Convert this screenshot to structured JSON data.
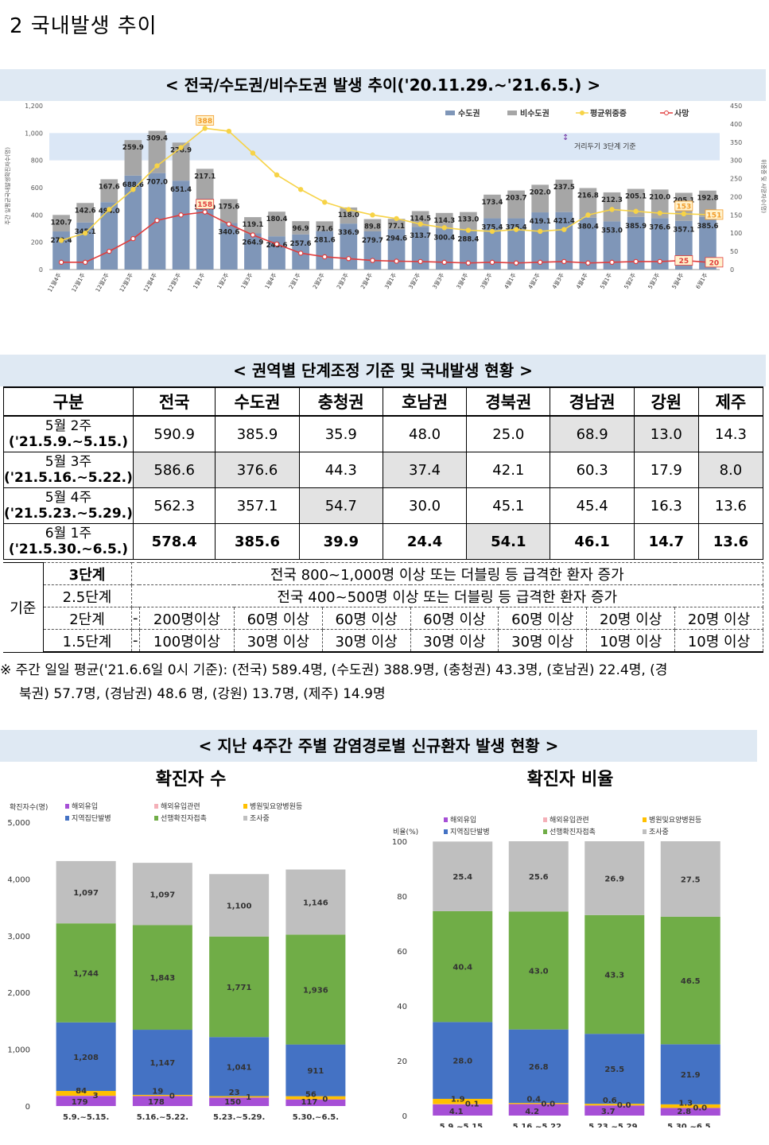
{
  "section_title": "2  국내발생 추이",
  "chart1": {
    "title": "< 전국/수도권/비수도권 발생 추이('20.11.29.~'21.6.5.) >",
    "legend": {
      "capital": "수도권",
      "noncapital": "비수도권",
      "avg_severe": "평균위중증",
      "death": "사망"
    },
    "band_label": "거리두기 3단계 기준",
    "y_left_title": "주간 일평균국내발생확진자수(명)",
    "y_right_title": "위중증 및 사망자수(명)",
    "y_left_ticks": [
      "0",
      "200",
      "400",
      "600",
      "800",
      "1,000",
      "1,200"
    ],
    "y_right_ticks": [
      "0",
      "50",
      "100",
      "150",
      "200",
      "250",
      "300",
      "350",
      "400",
      "450"
    ],
    "colors": {
      "capital": "#7f96b8",
      "noncapital": "#a6a6a6",
      "avg_severe": "#f7d347",
      "death": "#e03c3c",
      "band": "#dbe7f6"
    }
  },
  "chart_data": [
    {
      "type": "bar",
      "title": "< 전국/수도권/비수도권 발생 추이('20.11.29.~'21.6.5.) >",
      "categories": [
        "11월4주",
        "12월1주",
        "12월2주",
        "12월3주",
        "12월4주",
        "12월5주",
        "1월1주",
        "1월2주",
        "1월3주",
        "1월4주",
        "2월1주",
        "2월2주",
        "2월3주",
        "2월4주",
        "3월1주",
        "3월2주",
        "3월3주",
        "3월4주",
        "3월5주",
        "4월1주",
        "4월2주",
        "4월3주",
        "4월4주",
        "5월1주",
        "5월2주",
        "5월3주",
        "5월4주",
        "6월1주"
      ],
      "series": [
        {
          "name": "수도권",
          "values": [
            279.4,
            345.1,
            494.0,
            688.6,
            707.0,
            651.4,
            520.9,
            340.6,
            264.9,
            243.6,
            257.6,
            281.6,
            336.9,
            279.7,
            294.6,
            313.7,
            300.4,
            288.4,
            375.4,
            375.4,
            419.1,
            421.4,
            380.4,
            353.0,
            385.9,
            376.6,
            357.1,
            385.6
          ]
        },
        {
          "name": "비수도권",
          "values": [
            120.7,
            142.6,
            167.6,
            259.9,
            309.4,
            278.9,
            217.1,
            175.6,
            119.1,
            180.4,
            96.9,
            71.6,
            118.0,
            89.8,
            77.1,
            114.5,
            114.3,
            133.0,
            173.4,
            203.7,
            202.0,
            237.5,
            216.8,
            212.3,
            205.1,
            210.0,
            205.1,
            192.8
          ]
        },
        {
          "name": "평균위중증",
          "axis": "right",
          "values": [
            80,
            100,
            165,
            220,
            285,
            335,
            388,
            380,
            320,
            260,
            220,
            185,
            165,
            150,
            140,
            125,
            115,
            108,
            105,
            110,
            105,
            110,
            150,
            165,
            160,
            155,
            153,
            151
          ]
        },
        {
          "name": "사망",
          "axis": "right",
          "values": [
            20,
            20,
            50,
            85,
            135,
            150,
            158,
            125,
            95,
            70,
            45,
            35,
            30,
            25,
            23,
            22,
            20,
            18,
            20,
            18,
            20,
            22,
            18,
            20,
            22,
            22,
            25,
            20
          ]
        }
      ],
      "ylim": [
        0,
        1200
      ],
      "y2lim": [
        0,
        450
      ],
      "annotations": [
        "388",
        "158",
        "153",
        "151",
        "25",
        "20"
      ]
    },
    {
      "type": "bar",
      "title": "확진자 수",
      "ylabel": "확진자수(명)",
      "ylim": [
        0,
        5000
      ],
      "categories": [
        "5.9.~5.15.",
        "5.16.~5.22.",
        "5.23.~5.29.",
        "5.30.~6.5."
      ],
      "series": [
        {
          "name": "해외유입",
          "values": [
            179,
            178,
            150,
            117
          ]
        },
        {
          "name": "해외유입관련",
          "values": [
            3,
            0,
            1,
            0
          ]
        },
        {
          "name": "병원및요양병원등",
          "values": [
            84,
            19,
            23,
            56
          ]
        },
        {
          "name": "지역집단발병",
          "values": [
            1208,
            1147,
            1041,
            911
          ]
        },
        {
          "name": "선행확진자접촉",
          "values": [
            1744,
            1843,
            1771,
            1936
          ]
        },
        {
          "name": "조사중",
          "values": [
            1097,
            1097,
            1100,
            1146
          ]
        }
      ]
    },
    {
      "type": "bar",
      "title": "확진자 비율",
      "ylabel": "비율(%)",
      "ylim": [
        0,
        100
      ],
      "categories": [
        "5.9.~5.15.",
        "5.16.~5.22.",
        "5.23.~5.29.",
        "5.30.~6.5."
      ],
      "series": [
        {
          "name": "해외유입",
          "values": [
            4.1,
            4.2,
            3.7,
            2.8
          ]
        },
        {
          "name": "해외유입관련",
          "values": [
            0.1,
            0.0,
            0.0,
            0.0
          ]
        },
        {
          "name": "병원및요양병원등",
          "values": [
            1.9,
            0.4,
            0.6,
            1.3
          ]
        },
        {
          "name": "지역집단발병",
          "values": [
            28.0,
            26.8,
            25.5,
            21.9
          ]
        },
        {
          "name": "선행확진자접촉",
          "values": [
            40.4,
            43.0,
            43.3,
            46.5
          ]
        },
        {
          "name": "조사중",
          "values": [
            25.4,
            25.6,
            26.9,
            27.5
          ]
        }
      ]
    }
  ],
  "table": {
    "title": "< 권역별 단계조정 기준 및 국내발생 현황 >",
    "headers": [
      "구분",
      "전국",
      "수도권",
      "충청권",
      "호남권",
      "경북권",
      "경남권",
      "강원",
      "제주"
    ],
    "rows": [
      {
        "l1": "5월 2주",
        "l2": "('21.5.9.~5.15.)",
        "vals": [
          "590.9",
          "385.9",
          "35.9",
          "48.0",
          "25.0",
          "68.9",
          "13.0",
          "14.3"
        ]
      },
      {
        "l1": "5월 3주",
        "l2": "('21.5.16.~5.22.)",
        "vals": [
          "586.6",
          "376.6",
          "44.3",
          "37.4",
          "42.1",
          "60.3",
          "17.9",
          "8.0"
        ]
      },
      {
        "l1": "5월 4주",
        "l2": "('21.5.23.~5.29.)",
        "vals": [
          "562.3",
          "357.1",
          "54.7",
          "30.0",
          "45.1",
          "45.4",
          "16.3",
          "13.6"
        ]
      },
      {
        "l1": "6월 1주",
        "l2": "('21.5.30.~6.5.)",
        "vals": [
          "578.4",
          "385.6",
          "39.9",
          "24.4",
          "54.1",
          "46.1",
          "14.7",
          "13.6"
        ]
      }
    ],
    "criteria_label": "기준",
    "criteria": [
      {
        "stage": "3단계",
        "text": "전국 800~1,000명 이상 또는 더블링 등 급격한 환자 증가"
      },
      {
        "stage": "2.5단계",
        "text": "전국 400~500명 이상 또는 더블링 등 급격한 환자 증가"
      },
      {
        "stage": "2단계",
        "cells": [
          "-",
          "200명이상",
          "60명 이상",
          "60명 이상",
          "60명 이상",
          "60명 이상",
          "20명 이상",
          "20명 이상"
        ]
      },
      {
        "stage": "1.5단계",
        "cells": [
          "-",
          "100명이상",
          "30명 이상",
          "30명 이상",
          "30명 이상",
          "30명 이상",
          "10명 이상",
          "10명 이상"
        ]
      }
    ]
  },
  "note": {
    "line1": "※ 주간 일일 평균('21.6.6일 0시 기준): (전국) 589.4명, (수도권) 388.9명, (충청권) 43.3명, (호남권) 22.4명, (경",
    "line2": "북권) 57.7명, (경남권) 48.6 명, (강원) 13.7명, (제주) 14.9명"
  },
  "section3": {
    "title": "< 지난 4주간 주별 감염경로별 신규환자 발생 현황 >",
    "left_title": "확진자 수",
    "right_title": "확진자 비율",
    "left_yticks": [
      "0",
      "1,000",
      "2,000",
      "3,000",
      "4,000",
      "5,000"
    ],
    "right_yticks": [
      "0",
      "20",
      "40",
      "60",
      "80",
      "100"
    ],
    "left_value_labels": [
      [
        "179",
        "3",
        "84",
        "1,208",
        "1,744",
        "1,097"
      ],
      [
        "178",
        "0",
        "19",
        "1,147",
        "1,843",
        "1,097"
      ],
      [
        "150",
        "1",
        "23",
        "1,041",
        "1,771",
        "1,100"
      ],
      [
        "117",
        "0",
        "56",
        "911",
        "1,936",
        "1,146"
      ]
    ],
    "right_value_labels": [
      [
        "4.1",
        "0.1",
        "1.9",
        "28.0",
        "40.4",
        "25.4"
      ],
      [
        "4.2",
        "0.0",
        "0.4",
        "26.8",
        "43.0",
        "25.6"
      ],
      [
        "3.7",
        "0.0",
        "0.6",
        "25.5",
        "43.3",
        "26.9"
      ],
      [
        "2.8",
        "0.0",
        "1.3",
        "21.9",
        "46.5",
        "27.5"
      ]
    ],
    "legend": [
      "해외유입",
      "해외유입관련",
      "병원및요양병원등",
      "지역집단발병",
      "선행확진자접촉",
      "조사중"
    ],
    "colors": [
      "#a64fd6",
      "#f4b0b8",
      "#ffc000",
      "#4472c4",
      "#70ad47",
      "#bfbfbf"
    ]
  }
}
